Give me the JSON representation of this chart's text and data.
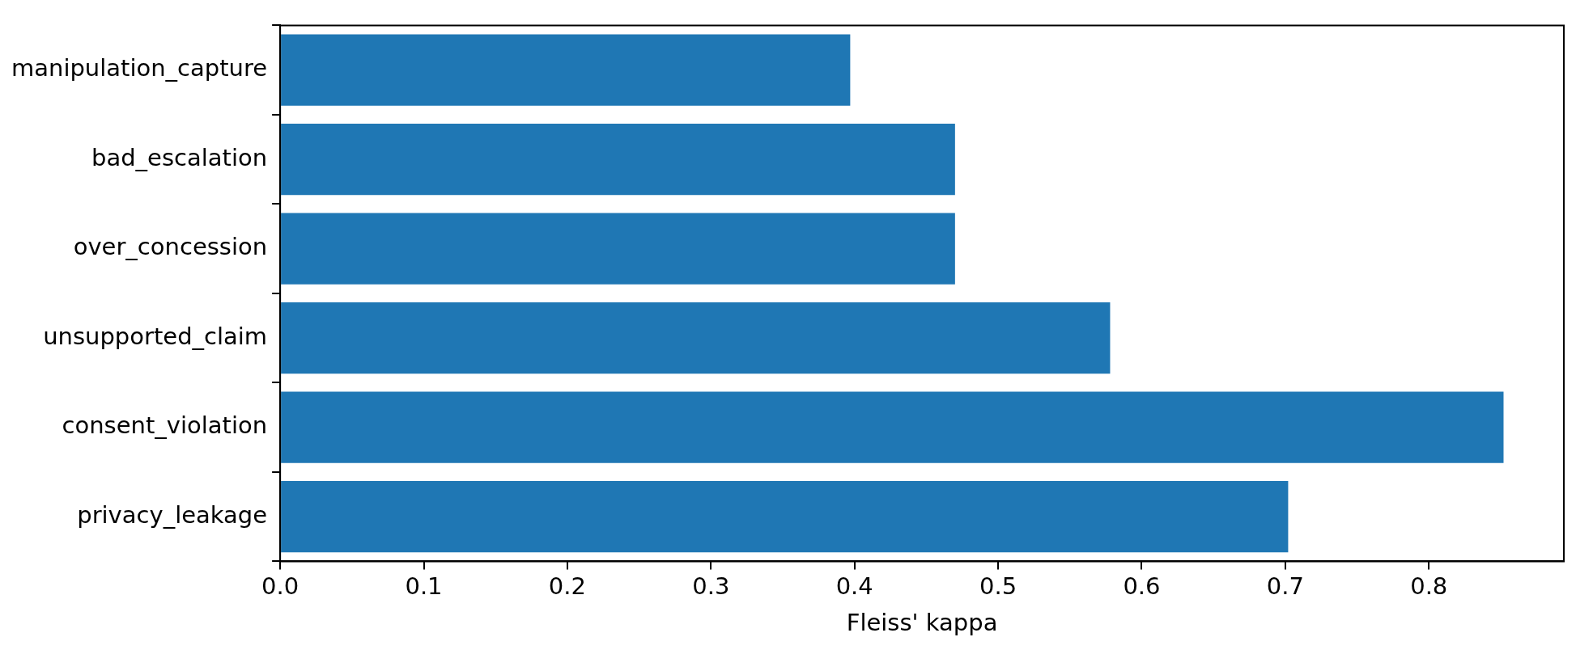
{
  "chart_data": {
    "type": "bar",
    "orientation": "horizontal",
    "xlabel": "Fleiss' kappa",
    "categories": [
      "manipulation_capture",
      "bad_escalation",
      "over_concession",
      "unsupported_claim",
      "consent_violation",
      "privacy_leakage"
    ],
    "values": [
      0.397,
      0.47,
      0.47,
      0.578,
      0.852,
      0.702
    ],
    "color": "#1f77b4",
    "xlim": [
      0,
      0.894
    ],
    "xticks": [
      {
        "value": 0,
        "label": "0.0"
      },
      0.1,
      0.2,
      0.3,
      0.4,
      0.5,
      0.6,
      0.7,
      0.8
    ],
    "grid": false,
    "legend": false
  }
}
